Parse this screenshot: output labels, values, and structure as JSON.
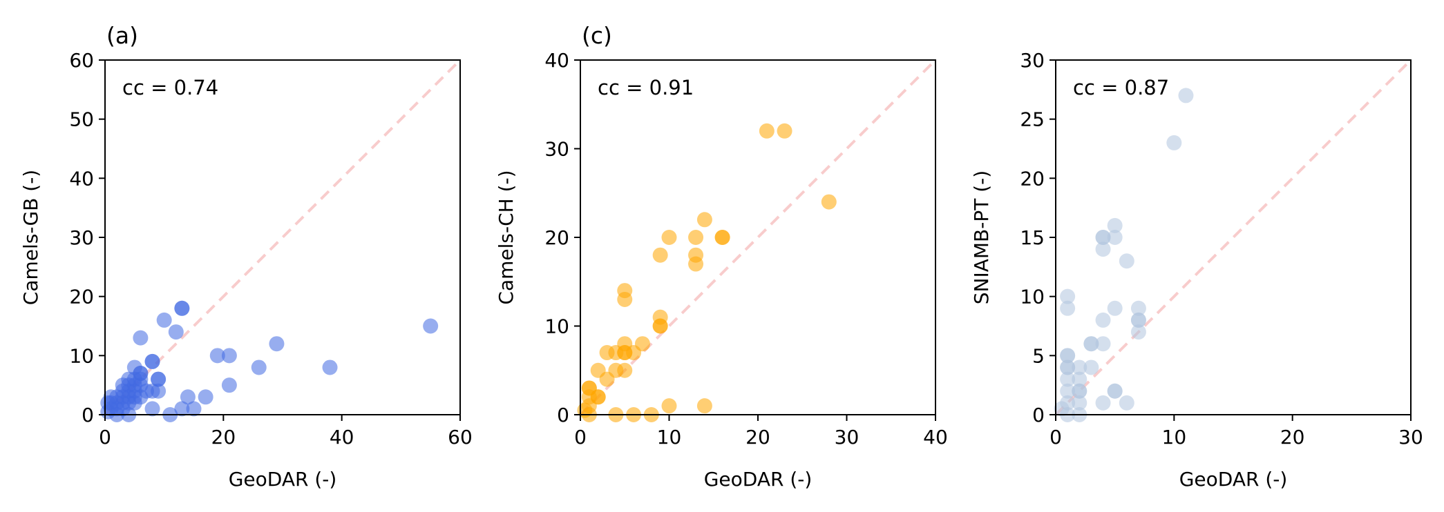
{
  "chart_data": [
    {
      "type": "scatter",
      "panel_label": "(a)",
      "annotation": "cc = 0.74",
      "xlabel": "GeoDAR (-)",
      "ylabel": "Camels-GB (-)",
      "xlim": [
        0,
        60
      ],
      "ylim": [
        0,
        60
      ],
      "xticks": [
        0,
        20,
        40,
        60
      ],
      "yticks": [
        0,
        10,
        20,
        30,
        40,
        50,
        60
      ],
      "color": "#4169e1",
      "reference_line": "y = x (dashed)",
      "reference_color": "#f4a3a3",
      "points": [
        [
          55,
          15
        ],
        [
          38,
          8
        ],
        [
          29,
          12
        ],
        [
          26,
          8
        ],
        [
          21,
          10
        ],
        [
          21,
          5
        ],
        [
          19,
          10
        ],
        [
          17,
          3
        ],
        [
          15,
          1
        ],
        [
          14,
          3
        ],
        [
          13,
          18
        ],
        [
          13,
          18
        ],
        [
          13,
          1
        ],
        [
          12,
          14
        ],
        [
          11,
          0
        ],
        [
          10,
          16
        ],
        [
          9,
          6
        ],
        [
          9,
          6
        ],
        [
          9,
          4
        ],
        [
          8,
          9
        ],
        [
          8,
          9
        ],
        [
          8,
          1
        ],
        [
          8,
          4
        ],
        [
          7,
          4
        ],
        [
          6,
          13
        ],
        [
          6,
          7
        ],
        [
          6,
          7
        ],
        [
          6,
          6
        ],
        [
          6,
          5
        ],
        [
          6,
          3
        ],
        [
          5,
          8
        ],
        [
          5,
          6
        ],
        [
          5,
          5
        ],
        [
          5,
          4
        ],
        [
          5,
          3
        ],
        [
          5,
          2
        ],
        [
          4,
          6
        ],
        [
          4,
          5
        ],
        [
          4,
          4
        ],
        [
          4,
          3
        ],
        [
          4,
          2
        ],
        [
          3,
          5
        ],
        [
          3,
          4
        ],
        [
          3,
          3
        ],
        [
          3,
          2
        ],
        [
          3,
          1
        ],
        [
          2,
          3
        ],
        [
          2,
          2
        ],
        [
          2,
          1
        ],
        [
          1,
          3
        ],
        [
          1,
          2
        ],
        [
          1,
          1
        ],
        [
          0.5,
          2
        ],
        [
          0.5,
          0.5
        ],
        [
          2,
          0
        ],
        [
          4,
          0
        ]
      ]
    },
    {
      "type": "scatter",
      "panel_label": "(c)",
      "annotation": "cc = 0.91",
      "xlabel": "GeoDAR (-)",
      "ylabel": "Camels-CH (-)",
      "xlim": [
        0,
        40
      ],
      "ylim": [
        0,
        40
      ],
      "xticks": [
        0,
        10,
        20,
        30,
        40
      ],
      "yticks": [
        0,
        10,
        20,
        30,
        40
      ],
      "color": "#ffa500",
      "reference_line": "y = x (dashed)",
      "reference_color": "#f4a3a3",
      "points": [
        [
          21,
          32
        ],
        [
          23,
          32
        ],
        [
          28,
          24
        ],
        [
          14,
          22
        ],
        [
          10,
          20
        ],
        [
          13,
          20
        ],
        [
          16,
          20
        ],
        [
          16,
          20
        ],
        [
          9,
          18
        ],
        [
          13,
          18
        ],
        [
          13,
          17
        ],
        [
          5,
          14
        ],
        [
          5,
          13
        ],
        [
          9,
          11
        ],
        [
          9,
          10
        ],
        [
          9,
          10
        ],
        [
          10,
          1
        ],
        [
          14,
          1
        ],
        [
          7,
          8
        ],
        [
          5,
          8
        ],
        [
          6,
          7
        ],
        [
          5,
          7
        ],
        [
          5,
          7
        ],
        [
          3,
          7
        ],
        [
          4,
          7
        ],
        [
          2,
          5
        ],
        [
          4,
          5
        ],
        [
          5,
          5
        ],
        [
          1,
          3
        ],
        [
          1,
          3
        ],
        [
          2,
          2
        ],
        [
          2,
          2
        ],
        [
          1,
          2
        ],
        [
          1,
          1
        ],
        [
          0.5,
          0.5
        ],
        [
          1,
          0
        ],
        [
          4,
          0
        ],
        [
          6,
          0
        ],
        [
          8,
          0
        ],
        [
          3,
          4
        ]
      ]
    },
    {
      "type": "scatter",
      "panel_label": "",
      "annotation": "cc = 0.87",
      "xlabel": "GeoDAR (-)",
      "ylabel": "SNIAMB-PT (-)",
      "xlim": [
        0,
        30
      ],
      "ylim": [
        0,
        30
      ],
      "xticks": [
        0,
        10,
        20,
        30
      ],
      "yticks": [
        0,
        5,
        10,
        15,
        20,
        25,
        30
      ],
      "color": "#b0c4de",
      "reference_line": "y = x (dashed)",
      "reference_color": "#f4a3a3",
      "points": [
        [
          11,
          27
        ],
        [
          10,
          23
        ],
        [
          5,
          16
        ],
        [
          4,
          15
        ],
        [
          4,
          15
        ],
        [
          5,
          15
        ],
        [
          4,
          14
        ],
        [
          6,
          13
        ],
        [
          1,
          10
        ],
        [
          1,
          9
        ],
        [
          5,
          9
        ],
        [
          7,
          9
        ],
        [
          7,
          8
        ],
        [
          7,
          8
        ],
        [
          4,
          8
        ],
        [
          7,
          7
        ],
        [
          3,
          6
        ],
        [
          3,
          6
        ],
        [
          4,
          6
        ],
        [
          1,
          5
        ],
        [
          1,
          5
        ],
        [
          1,
          4
        ],
        [
          1,
          4
        ],
        [
          2,
          4
        ],
        [
          3,
          4
        ],
        [
          1,
          3
        ],
        [
          2,
          3
        ],
        [
          1,
          2
        ],
        [
          2,
          2
        ],
        [
          2,
          2
        ],
        [
          5,
          2
        ],
        [
          5,
          2
        ],
        [
          1,
          1
        ],
        [
          2,
          1
        ],
        [
          4,
          1
        ],
        [
          6,
          1
        ],
        [
          1,
          0
        ],
        [
          2,
          0
        ],
        [
          0.5,
          0.5
        ]
      ]
    }
  ]
}
